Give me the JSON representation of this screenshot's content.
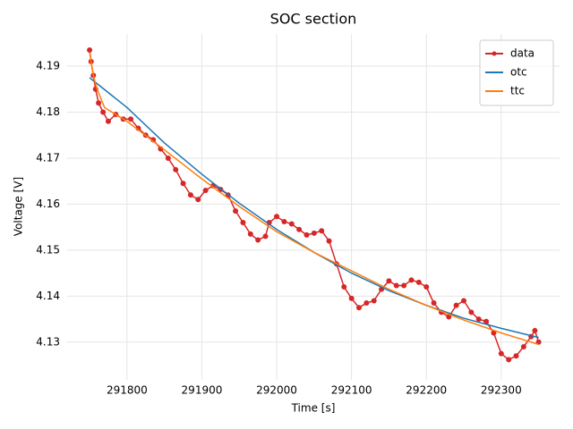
{
  "chart_data": {
    "type": "line",
    "title": "SOC section",
    "x_label": "Time [s]",
    "y_label": "Voltage [V]",
    "xlim": [
      291720,
      292378
    ],
    "ylim": [
      4.1218,
      4.197
    ],
    "xticks": [
      291800,
      291900,
      292000,
      292100,
      292200,
      292300
    ],
    "yticks": [
      4.13,
      4.14,
      4.15,
      4.16,
      4.17,
      4.18,
      4.19
    ],
    "grid": true,
    "legend": "upper right",
    "series": [
      {
        "name": "data",
        "color": "#d62728",
        "marker": "o",
        "x": [
          291750,
          291752,
          291755,
          291758,
          291762,
          291768,
          291775,
          291785,
          291795,
          291805,
          291815,
          291825,
          291835,
          291845,
          291855,
          291865,
          291875,
          291885,
          291895,
          291905,
          291915,
          291925,
          291935,
          291945,
          291955,
          291965,
          291975,
          291985,
          291990,
          292000,
          292010,
          292020,
          292030,
          292040,
          292050,
          292060,
          292070,
          292080,
          292090,
          292100,
          292110,
          292120,
          292130,
          292140,
          292150,
          292160,
          292170,
          292180,
          292190,
          292200,
          292210,
          292220,
          292230,
          292240,
          292250,
          292260,
          292270,
          292280,
          292290,
          292300,
          292310,
          292320,
          292330,
          292340,
          292345,
          292350
        ],
        "values": [
          4.1935,
          4.191,
          4.188,
          4.185,
          4.182,
          4.18,
          4.178,
          4.1795,
          4.1785,
          4.1785,
          4.1765,
          4.175,
          4.174,
          4.172,
          4.17,
          4.1675,
          4.1645,
          4.162,
          4.161,
          4.163,
          4.164,
          4.1632,
          4.162,
          4.1585,
          4.156,
          4.1535,
          4.1522,
          4.153,
          4.156,
          4.1573,
          4.1562,
          4.1557,
          4.1545,
          4.1533,
          4.1537,
          4.1542,
          4.152,
          4.147,
          4.142,
          4.1395,
          4.1375,
          4.1385,
          4.139,
          4.1415,
          4.1433,
          4.1423,
          4.1423,
          4.1435,
          4.143,
          4.142,
          4.1385,
          4.1365,
          4.1355,
          4.138,
          4.139,
          4.1365,
          4.135,
          4.1345,
          4.132,
          4.1275,
          4.1262,
          4.127,
          4.129,
          4.1312,
          4.1325,
          4.13
        ]
      },
      {
        "name": "otc",
        "color": "#1f77b4",
        "x": [
          291750,
          291800,
          291850,
          291900,
          291950,
          292000,
          292050,
          292100,
          292150,
          292200,
          292250,
          292300,
          292350
        ],
        "values": [
          4.1875,
          4.181,
          4.1733,
          4.1665,
          4.1602,
          4.1545,
          4.1495,
          4.145,
          4.1412,
          4.138,
          4.1352,
          4.133,
          4.131
        ]
      },
      {
        "name": "ttc",
        "color": "#ff7f0e",
        "x": [
          291750,
          291755,
          291760,
          291770,
          291800,
          291850,
          291900,
          291950,
          292000,
          292050,
          292100,
          292150,
          292200,
          292250,
          292300,
          292350
        ],
        "values": [
          4.193,
          4.188,
          4.185,
          4.181,
          4.178,
          4.1718,
          4.1655,
          4.1595,
          4.154,
          4.1495,
          4.1455,
          4.1415,
          4.138,
          4.1348,
          4.132,
          4.1295
        ]
      }
    ]
  }
}
